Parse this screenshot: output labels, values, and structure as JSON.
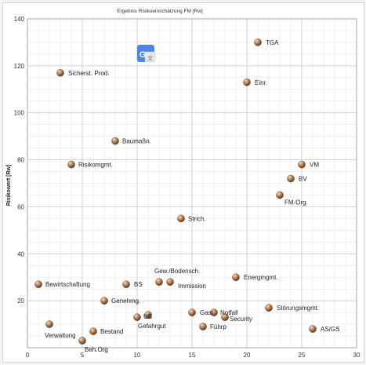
{
  "chart_data": {
    "type": "scatter",
    "title": "Ergebnis Risikoeinschätzung FM [Rw]",
    "xlabel": "",
    "ylabel": "Risikowert [Rw]",
    "xlim": [
      0,
      30
    ],
    "ylim": [
      0,
      140
    ],
    "x_ticks": [
      0,
      5,
      10,
      15,
      20,
      25,
      30
    ],
    "y_ticks": [
      0,
      20,
      40,
      60,
      80,
      100,
      120,
      140
    ],
    "y_tick_labels": [
      "",
      "20",
      "40",
      "60",
      "80",
      "100",
      "120",
      "140"
    ],
    "grid": true,
    "marker_color": "#b0784a",
    "points": [
      {
        "label": "TGA",
        "x": 21,
        "y": 130
      },
      {
        "label": "Sicherst. Prod.",
        "x": 3,
        "y": 117
      },
      {
        "label": "Einr.",
        "x": 20,
        "y": 113
      },
      {
        "label": "Baumaßn.",
        "x": 8,
        "y": 88
      },
      {
        "label": "Risikomgmt.",
        "x": 4,
        "y": 78
      },
      {
        "label": "VM",
        "x": 25,
        "y": 78
      },
      {
        "label": "BV",
        "x": 24,
        "y": 72
      },
      {
        "label": "FM-Org.",
        "x": 23,
        "y": 65
      },
      {
        "label": "Strich.",
        "x": 14,
        "y": 55
      },
      {
        "label": "Gew./Bodensch.",
        "x": 12,
        "y": 28
      },
      {
        "label": "Immission",
        "x": 13,
        "y": 28
      },
      {
        "label": "Energmgmt.",
        "x": 19,
        "y": 30
      },
      {
        "label": "Bewirtschaftung",
        "x": 1,
        "y": 27
      },
      {
        "label": "BS",
        "x": 9,
        "y": 27
      },
      {
        "label": "Genehmg.",
        "x": 7,
        "y": 20
      },
      {
        "label": "Störungsmgmt.",
        "x": 22,
        "y": 17
      },
      {
        "label": "Gast",
        "x": 15,
        "y": 15
      },
      {
        "label": "Notfall",
        "x": 17,
        "y": 15
      },
      {
        "label": "Security",
        "x": 18,
        "y": 13
      },
      {
        "label": "UB",
        "x": 11,
        "y": 14
      },
      {
        "label": "Gefahrgut",
        "x": 10,
        "y": 13
      },
      {
        "label": "Führp",
        "x": 16,
        "y": 9
      },
      {
        "label": "AS/GS",
        "x": 26,
        "y": 8
      },
      {
        "label": "Bestand",
        "x": 6,
        "y": 7
      },
      {
        "label": "Verwaltung",
        "x": 2,
        "y": 10
      },
      {
        "label": "Beh.Org",
        "x": 5,
        "y": 3
      }
    ]
  },
  "overlay": {
    "icon": "google-translate-icon"
  }
}
